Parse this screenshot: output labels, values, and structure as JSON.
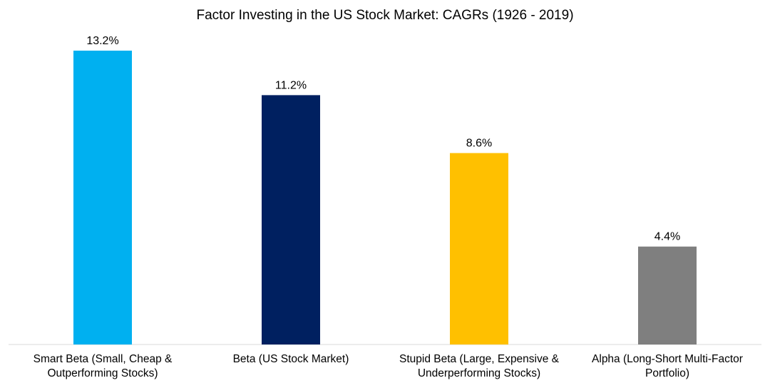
{
  "chart_data": {
    "type": "bar",
    "title": "Factor Investing in the US Stock Market: CAGRs (1926 - 2019)",
    "xlabel": "",
    "ylabel": "",
    "ylim": [
      0,
      13.2
    ],
    "grid": false,
    "legend": "none",
    "categories": [
      [
        "Smart Beta (Small, Cheap &",
        "Outperforming Stocks)"
      ],
      [
        "Beta (US Stock Market)"
      ],
      [
        "Stupid Beta (Large, Expensive &",
        "Underperforming Stocks)"
      ],
      [
        "Alpha (Long-Short Multi-Factor",
        "Portfolio)"
      ]
    ],
    "values": [
      13.2,
      11.2,
      8.6,
      4.4
    ],
    "value_labels": [
      "13.2%",
      "11.2%",
      "8.6%",
      "4.4%"
    ],
    "colors": [
      "#00B0F0",
      "#002060",
      "#FFC000",
      "#7F7F7F"
    ]
  }
}
